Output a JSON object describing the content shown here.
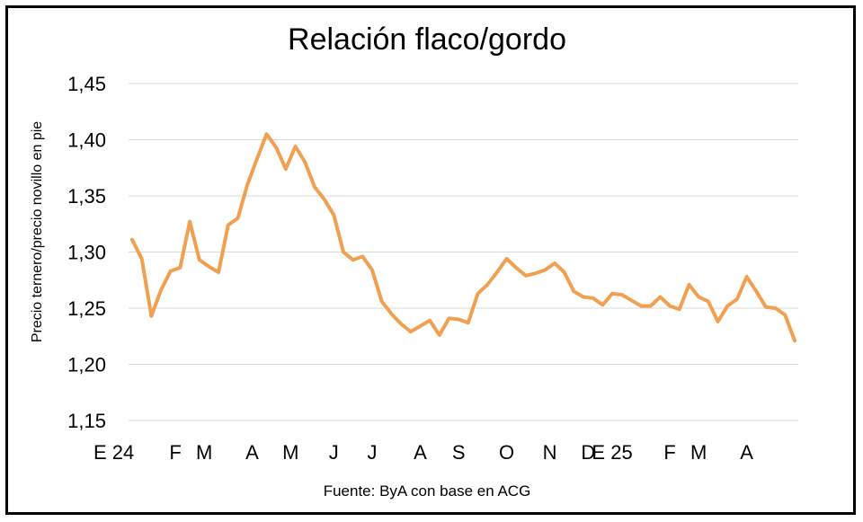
{
  "chart_data": {
    "type": "line",
    "title": "Relación flaco/gordo",
    "ylabel": "Precio ternero/precio novillo en pie",
    "xlabel": "",
    "source": "Fuente: ByA con base en ACG",
    "ylim": [
      1.15,
      1.45
    ],
    "yticks": [
      "1,15",
      "1,20",
      "1,25",
      "1,30",
      "1,35",
      "1,40",
      "1,45"
    ],
    "ytick_values": [
      1.15,
      1.2,
      1.25,
      1.3,
      1.35,
      1.4,
      1.45
    ],
    "grid": true,
    "line_color": "#F0A050",
    "xtick_labels": [
      "E 24",
      "F",
      "M",
      "A",
      "M",
      "J",
      "J",
      "A",
      "S",
      "O",
      "N",
      "D",
      "E 25",
      "F",
      "M",
      "A"
    ],
    "xtick_index": [
      0,
      4.5,
      7.5,
      12.5,
      16.5,
      21,
      25,
      30,
      34,
      39,
      43.5,
      47.5,
      50,
      56,
      59,
      64
    ],
    "series": [
      {
        "values": [
          1.311,
          1.294,
          1.243,
          1.266,
          1.283,
          1.286,
          1.327,
          1.293,
          1.287,
          1.282,
          1.324,
          1.33,
          1.36,
          1.383,
          1.405,
          1.393,
          1.374,
          1.394,
          1.38,
          1.358,
          1.347,
          1.333,
          1.3,
          1.293,
          1.296,
          1.284,
          1.256,
          1.245,
          1.236,
          1.229,
          1.234,
          1.239,
          1.226,
          1.241,
          1.24,
          1.237,
          1.263,
          1.271,
          1.282,
          1.294,
          1.286,
          1.279,
          1.281,
          1.284,
          1.29,
          1.282,
          1.265,
          1.26,
          1.259,
          1.253,
          1.263,
          1.262,
          1.257,
          1.252,
          1.252,
          1.26,
          1.252,
          1.249,
          1.271,
          1.26,
          1.256,
          1.238,
          1.252,
          1.258,
          1.278,
          1.265,
          1.251,
          1.25,
          1.244,
          1.221
        ]
      }
    ]
  }
}
